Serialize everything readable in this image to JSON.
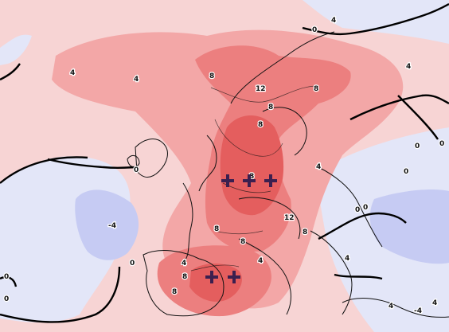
{
  "map": {
    "colors": {
      "warm_light": "#f7d4d4",
      "warm_mid": "#f3a7a7",
      "warm_strong": "#ec7f7f",
      "warm_max": "#e45e5e",
      "cool_light": "#e3e6f8",
      "cool_mid": "#c6cbf3",
      "coast": "#111111",
      "contour_zero": "#000000"
    },
    "contour_labels": [
      {
        "text": "0"
      },
      {
        "text": "4"
      },
      {
        "text": "4"
      },
      {
        "text": "4"
      },
      {
        "text": "4"
      },
      {
        "text": "8"
      },
      {
        "text": "12"
      },
      {
        "text": "8"
      },
      {
        "text": "8"
      },
      {
        "text": "8"
      },
      {
        "text": "0"
      },
      {
        "text": "4"
      },
      {
        "text": "8"
      },
      {
        "text": "12"
      },
      {
        "text": "0"
      },
      {
        "text": "0"
      },
      {
        "text": "0"
      },
      {
        "text": "8"
      },
      {
        "text": "8"
      },
      {
        "text": "8"
      },
      {
        "text": "-4"
      },
      {
        "text": "0"
      },
      {
        "text": "4"
      },
      {
        "text": "8"
      },
      {
        "text": "8"
      },
      {
        "text": "4"
      },
      {
        "text": "0"
      },
      {
        "text": "0"
      },
      {
        "text": "-4"
      },
      {
        "text": "4"
      },
      {
        "text": "4"
      },
      {
        "text": "0"
      },
      {
        "text": "0"
      },
      {
        "text": "4"
      }
    ],
    "markers": [
      {
        "symbol": "+"
      },
      {
        "symbol": "+"
      },
      {
        "symbol": "+"
      },
      {
        "symbol": "+"
      },
      {
        "symbol": "+"
      }
    ]
  }
}
